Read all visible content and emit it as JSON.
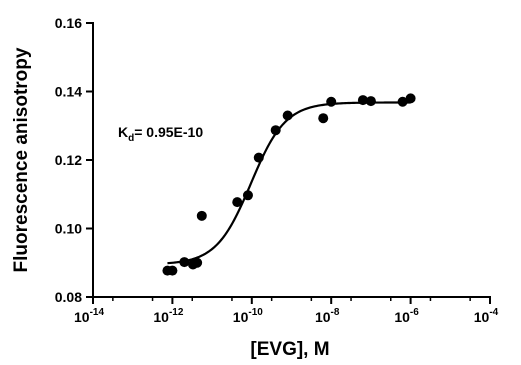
{
  "chart_data": {
    "type": "scatter",
    "xlabel": "[EVG], M",
    "ylabel": "Fluorescence anisotropy",
    "x_scale": "log10",
    "xlim": [
      1e-14,
      0.0001
    ],
    "ylim": [
      0.08,
      0.16
    ],
    "x_ticks": [
      {
        "value": 1e-14,
        "base": "10",
        "exp": "-14"
      },
      {
        "value": 1e-12,
        "base": "10",
        "exp": "-12"
      },
      {
        "value": 1e-10,
        "base": "10",
        "exp": "-10"
      },
      {
        "value": 1e-08,
        "base": "10",
        "exp": "-8"
      },
      {
        "value": 1e-06,
        "base": "10",
        "exp": "-6"
      },
      {
        "value": 0.0001,
        "base": "10",
        "exp": "-4"
      }
    ],
    "y_ticks": [
      {
        "value": 0.08,
        "label": "0.08"
      },
      {
        "value": 0.1,
        "label": "0.10"
      },
      {
        "value": 0.12,
        "label": "0.12"
      },
      {
        "value": 0.14,
        "label": "0.14"
      },
      {
        "value": 0.16,
        "label": "0.16"
      }
    ],
    "grid": false,
    "annotation": {
      "prefix": "K",
      "subscript": "d",
      "text": "= 0.95E-10"
    },
    "series": [
      {
        "points": [
          {
            "x": 7.5e-13,
            "y": 0.0877
          },
          {
            "x": 1e-12,
            "y": 0.0877
          },
          {
            "x": 2e-12,
            "y": 0.0902
          },
          {
            "x": 3.3e-12,
            "y": 0.0895
          },
          {
            "x": 4.2e-12,
            "y": 0.09
          },
          {
            "x": 5.5e-12,
            "y": 0.1037
          },
          {
            "x": 4.3e-11,
            "y": 0.1077
          },
          {
            "x": 8e-11,
            "y": 0.1097
          },
          {
            "x": 1.5e-10,
            "y": 0.1207
          },
          {
            "x": 4e-10,
            "y": 0.1287
          },
          {
            "x": 8e-10,
            "y": 0.133
          },
          {
            "x": 6.3e-09,
            "y": 0.1322
          },
          {
            "x": 1e-08,
            "y": 0.137
          },
          {
            "x": 6.3e-08,
            "y": 0.1375
          },
          {
            "x": 1e-07,
            "y": 0.1372
          },
          {
            "x": 6.3e-07,
            "y": 0.137
          },
          {
            "x": 1e-06,
            "y": 0.138
          }
        ],
        "fit": {
          "model": "one-site binding",
          "bottom": 0.0895,
          "top": 0.1368,
          "kd": 9.5e-11,
          "hill": 1
        }
      }
    ]
  }
}
